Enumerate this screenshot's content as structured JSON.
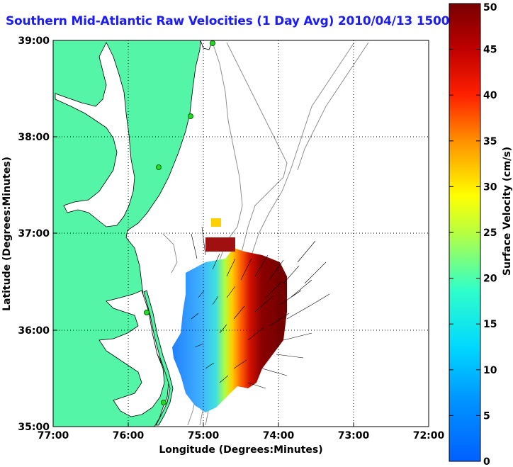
{
  "title": "Southern Mid-Atlantic Raw Velocities (1 Day Avg) 2010/04/13 1500 EDT",
  "map": {
    "xlabel": "Longitude (Degrees:Minutes)",
    "ylabel": "Latitude (Degrees:Minutes)",
    "x_ticks": [
      "77:00",
      "76:00",
      "75:00",
      "74:00",
      "73:00",
      "72:00"
    ],
    "y_ticks": [
      "39:00",
      "38:00",
      "37:00",
      "36:00",
      "35:00"
    ],
    "land_color": "#55f5a8",
    "coast_color": "#000000",
    "bathymetry_color": "#909090",
    "grid_style": "dotted"
  },
  "colorbar": {
    "label": "Surface Velocity (cm/s)",
    "min": 0,
    "max": 50,
    "ticks": [
      "0",
      "5",
      "10",
      "15",
      "20",
      "25",
      "30",
      "35",
      "40",
      "45",
      "50"
    ],
    "colormap": "jet"
  },
  "stations": [
    "station-marker"
  ]
}
